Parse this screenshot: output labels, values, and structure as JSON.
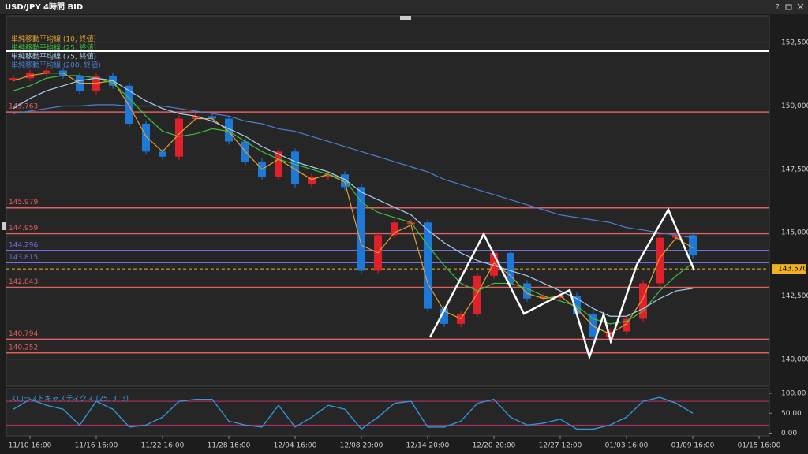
{
  "window": {
    "title": "USD/JPY 4時間 BID"
  },
  "chart_data": [
    {
      "type": "candlestick",
      "categories": [
        null,
        "11/10 16:00",
        null,
        null,
        null,
        "11/16 16:00",
        null,
        null,
        null,
        "11/22 16:00",
        null,
        null,
        null,
        "11/28 16:00",
        null,
        null,
        null,
        "12/04 16:00",
        null,
        null,
        null,
        "12/08 20:00",
        null,
        null,
        null,
        "12/14 20:00",
        null,
        null,
        null,
        "12/20 20:00",
        null,
        null,
        null,
        "12/27 12:00",
        null,
        null,
        null,
        "01/03 16:00",
        null,
        null,
        null,
        "01/09 16:00",
        null,
        null,
        null,
        "01/15 16:00"
      ],
      "values": [
        151.1,
        151.3,
        151.4,
        151.2,
        150.6,
        151.2,
        150.8,
        149.3,
        148.2,
        148.0,
        149.5,
        149.6,
        149.5,
        148.6,
        147.8,
        147.2,
        148.2,
        146.9,
        147.2,
        147.3,
        146.8,
        143.5,
        144.9,
        145.4,
        145.4,
        142.0,
        141.4,
        141.8,
        143.3,
        144.2,
        143.0,
        142.4,
        142.5,
        142.5,
        141.8,
        140.9,
        141.1,
        141.6,
        143.0,
        144.8,
        144.9,
        144.1,
        null,
        null,
        null,
        null
      ],
      "up_color": "#e0202a",
      "down_color": "#1e78d8",
      "series": [
        {
          "name": "単純移動平均線 (10, 終値)",
          "color": "#e0a030",
          "values": [
            151.0,
            151.2,
            151.3,
            151.3,
            150.9,
            150.9,
            151.0,
            150.0,
            148.8,
            148.2,
            148.9,
            149.5,
            149.5,
            149.0,
            148.2,
            147.5,
            147.9,
            147.5,
            147.1,
            147.3,
            147.0,
            144.5,
            144.2,
            145.0,
            145.3,
            143.0,
            141.9,
            141.6,
            142.6,
            143.8,
            143.3,
            142.6,
            142.4,
            142.5,
            142.0,
            141.3,
            141.0,
            141.4,
            142.4,
            144.0,
            144.8,
            144.4,
            null,
            null,
            null,
            null
          ]
        },
        {
          "name": "単純移動平均線 (25, 終値)",
          "color": "#3cc03c",
          "values": [
            150.6,
            150.8,
            151.1,
            151.2,
            151.2,
            151.1,
            150.9,
            150.3,
            149.6,
            149.0,
            148.8,
            148.9,
            149.1,
            149.0,
            148.6,
            148.2,
            147.9,
            147.7,
            147.5,
            147.3,
            147.1,
            146.2,
            145.8,
            145.6,
            145.4,
            144.5,
            143.7,
            143.0,
            142.7,
            143.0,
            143.0,
            142.8,
            142.5,
            142.3,
            142.1,
            141.6,
            141.4,
            141.5,
            141.9,
            142.7,
            143.3,
            143.8,
            null,
            null,
            null,
            null
          ]
        },
        {
          "name": "単純移動平均線 (75, 終値)",
          "color": "#a8cdf0",
          "values": [
            149.9,
            150.3,
            150.6,
            150.8,
            151.0,
            151.1,
            151.0,
            150.6,
            150.2,
            149.9,
            149.7,
            149.6,
            149.4,
            149.1,
            148.8,
            148.4,
            148.1,
            147.8,
            147.6,
            147.4,
            147.1,
            146.6,
            146.3,
            146.0,
            145.7,
            145.1,
            144.6,
            144.2,
            143.9,
            143.7,
            143.5,
            143.3,
            143.0,
            142.7,
            142.4,
            142.0,
            141.7,
            141.7,
            142.0,
            142.4,
            142.7,
            142.8,
            null,
            null,
            null,
            null
          ]
        },
        {
          "name": "単純移動平均線 (200, 終値)",
          "color": "#4a7fd0",
          "values": [
            149.7,
            149.8,
            149.9,
            150.0,
            150.0,
            150.05,
            150.05,
            150.0,
            150.0,
            150.0,
            149.9,
            149.8,
            149.7,
            149.6,
            149.4,
            149.3,
            149.1,
            149.0,
            148.8,
            148.6,
            148.4,
            148.2,
            148.0,
            147.8,
            147.6,
            147.4,
            147.1,
            146.9,
            146.7,
            146.5,
            146.3,
            146.1,
            145.9,
            145.7,
            145.6,
            145.5,
            145.4,
            145.2,
            145.1,
            145.0,
            144.9,
            144.8,
            null,
            null,
            null,
            null
          ]
        }
      ],
      "ylim": [
        139.0,
        153.5
      ],
      "yticks": [
        {
          "value": 152.5,
          "label": "152,500"
        },
        {
          "value": 150,
          "label": "150,000"
        },
        {
          "value": 147.5,
          "label": "147,500"
        },
        {
          "value": 145,
          "label": "145,000"
        },
        {
          "value": 142.5,
          "label": "142,500"
        },
        {
          "value": 140,
          "label": "140,000"
        }
      ],
      "levels": [
        149.763,
        145.979,
        144.959,
        144.296,
        143.815,
        142.843,
        140.794,
        140.252
      ],
      "level_colors": [
        "#e06060",
        "#e06060",
        "#e06060",
        "#7070e0",
        "#7070e0",
        "#e06060",
        "#e06060",
        "#e06060"
      ],
      "last": {
        "value": 143.57,
        "label": "143.570"
      },
      "last_color": "#f0b020"
    },
    {
      "type": "line",
      "title": "スローストキャスティクス (25, 3, 3)",
      "series": [
        {
          "name": "スローストキャスティクス (25, 3, 3)",
          "color": "#2f9be0",
          "values": [
            60,
            85,
            70,
            60,
            20,
            80,
            60,
            15,
            20,
            40,
            80,
            85,
            85,
            30,
            20,
            15,
            70,
            15,
            40,
            70,
            60,
            10,
            40,
            75,
            80,
            15,
            15,
            30,
            75,
            85,
            40,
            20,
            25,
            35,
            10,
            10,
            20,
            40,
            80,
            90,
            75,
            50,
            null,
            null,
            null,
            null
          ]
        }
      ],
      "ylim": [
        -5,
        110
      ],
      "yticks": [
        {
          "value": 100,
          "label": "100.00"
        },
        {
          "value": 50,
          "label": "50.00"
        },
        {
          "value": 0,
          "label": "0.00"
        }
      ],
      "bands": [
        80,
        20
      ]
    }
  ]
}
